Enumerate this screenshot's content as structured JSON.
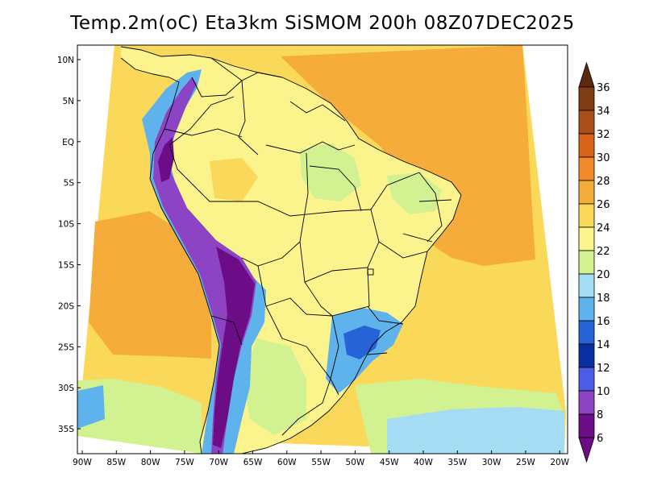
{
  "title": "Temp.2m(oC) Eta3km SiSMOM 200h 08Z07DEC2025",
  "lat_labels": [
    "10N",
    "5N",
    "EQ",
    "5S",
    "10S",
    "15S",
    "20S",
    "25S",
    "30S",
    "35S"
  ],
  "lon_labels": [
    "90W",
    "85W",
    "80W",
    "75W",
    "70W",
    "65W",
    "60W",
    "55W",
    "50W",
    "45W",
    "40W",
    "35W",
    "30W",
    "25W",
    "20W"
  ],
  "colorbar": {
    "units": "oC",
    "labels": [
      "36",
      "34",
      "32",
      "30",
      "28",
      "26",
      "24",
      "22",
      "20",
      "18",
      "16",
      "14",
      "12",
      "10",
      "8",
      "6"
    ],
    "colors": [
      "#5c2a0e",
      "#7e3d14",
      "#a84f1a",
      "#d8641a",
      "#f28a2c",
      "#f5ac3a",
      "#f9d85a",
      "#fbf48c",
      "#d2f190",
      "#a4dcf4",
      "#5fb3ec",
      "#2563d6",
      "#0a2fa0",
      "#4b5ce6",
      "#8c44c4",
      "#6c0c86"
    ],
    "tip_top_color": "#5c2a0e",
    "tip_bottom_color": "#6c0c86"
  },
  "map_colors": {
    "ocean_warm": "#f5ac3a",
    "ocean_mild": "#f9d85a",
    "ocean_cool": "#fbf48c",
    "ocean_cold": "#d2f190",
    "ocean_south": "#a4dcf4",
    "ocean_far_south": "#5fb3ec",
    "land_base": "#fbf48c",
    "land_cool": "#d2f190",
    "land_warm": "#f9d85a",
    "highland_1": "#5fb3ec",
    "highland_2": "#2563d6",
    "andes_high": "#8c44c4",
    "andes_peak": "#6c0c86",
    "border": "#000000"
  }
}
